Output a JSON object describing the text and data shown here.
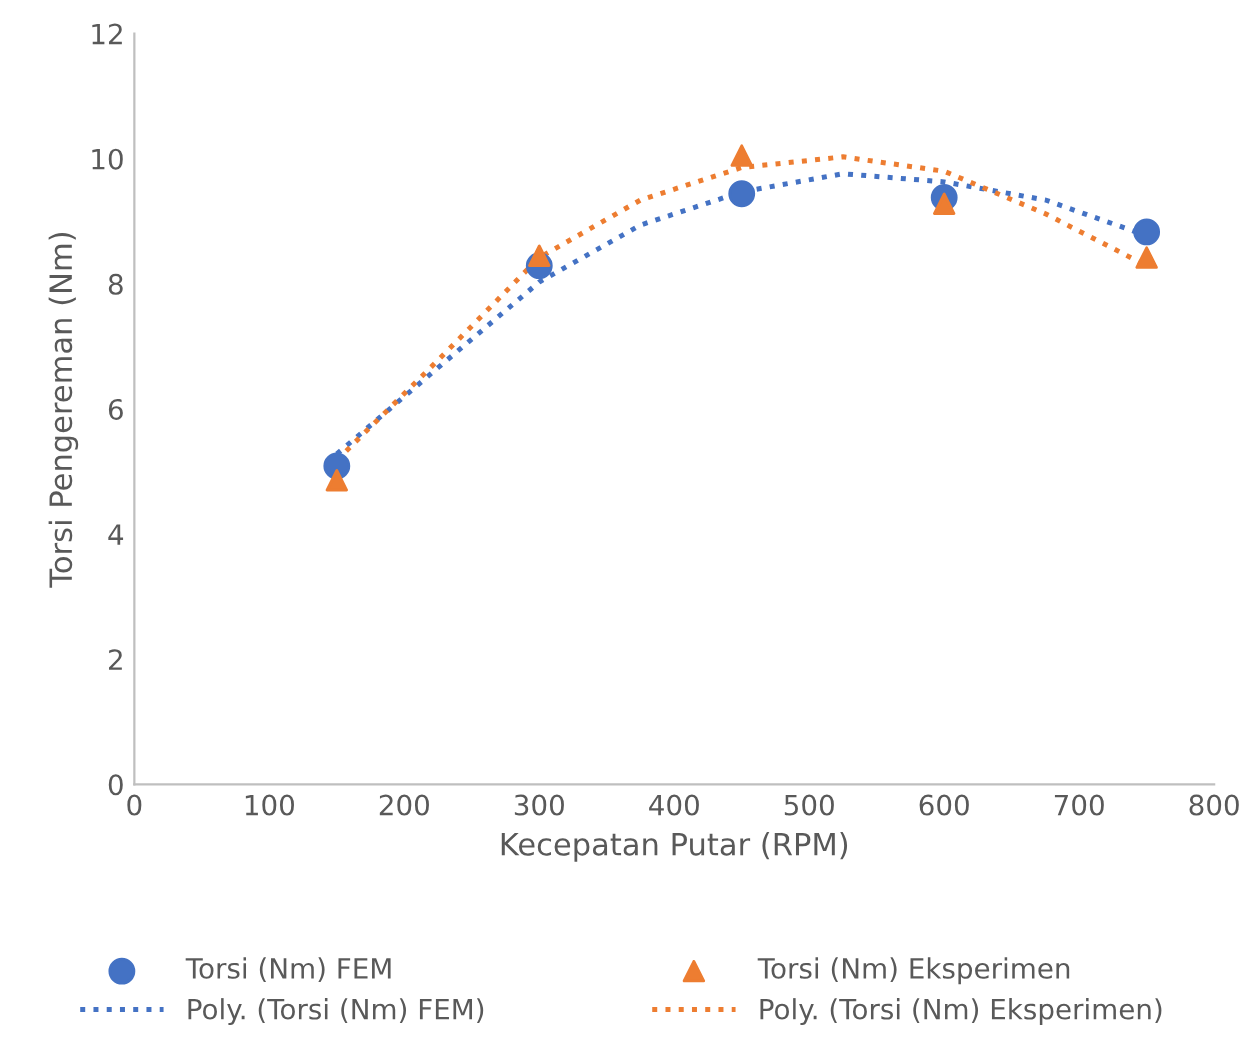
{
  "chart_data": {
    "type": "scatter",
    "xlabel": "Kecepatan Putar (RPM)",
    "ylabel": "Torsi Pengereman (Nm)",
    "xlim": [
      0,
      800
    ],
    "xticks": [
      0,
      100,
      200,
      300,
      400,
      500,
      600,
      700,
      800
    ],
    "ylim": [
      0,
      12
    ],
    "yticks": [
      0,
      2,
      4,
      6,
      8,
      10,
      12
    ],
    "grid": false,
    "legend": "bottom",
    "series": [
      {
        "name": "Torsi (Nm) FEM",
        "marker": "circle",
        "color": "#4472c4",
        "x": [
          150,
          300,
          450,
          600,
          750
        ],
        "values": [
          5.09,
          8.29,
          9.44,
          9.38,
          8.83
        ]
      },
      {
        "name": "Torsi (Nm) Eksperimen",
        "marker": "triangle",
        "color": "#ed7d31",
        "x": [
          150,
          300,
          450,
          600,
          750
        ],
        "values": [
          4.86,
          8.45,
          10.05,
          9.28,
          8.42
        ]
      },
      {
        "name": "Poly. (Torsi (Nm) FEM)",
        "type": "line",
        "line_style": "dotted",
        "color": "#4472c4",
        "x": [
          150,
          225,
          300,
          375,
          450,
          525,
          600,
          675,
          750
        ],
        "values": [
          5.28,
          6.66,
          8.03,
          8.94,
          9.47,
          9.76,
          9.63,
          9.34,
          8.77
        ]
      },
      {
        "name": "Poly. (Torsi (Nm) Eksperimen)",
        "type": "line",
        "line_style": "dotted",
        "color": "#ed7d31",
        "x": [
          150,
          225,
          300,
          375,
          450,
          525,
          600,
          675,
          750
        ],
        "values": [
          5.18,
          6.78,
          8.42,
          9.34,
          9.86,
          10.03,
          9.8,
          9.12,
          8.29
        ]
      }
    ]
  }
}
